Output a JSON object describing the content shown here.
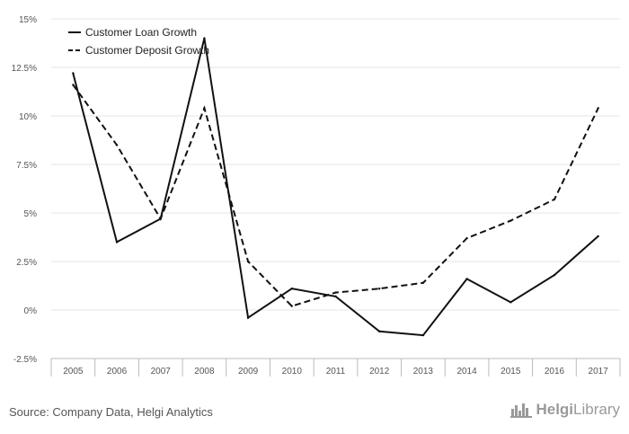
{
  "chart_data": {
    "type": "line",
    "x": [
      "2005",
      "2006",
      "2007",
      "2008",
      "2009",
      "2010",
      "2011",
      "2012",
      "2013",
      "2014",
      "2015",
      "2016",
      "2017"
    ],
    "series": [
      {
        "name": "Customer Loan Growth",
        "style": "solid",
        "values": [
          12.2,
          3.5,
          4.7,
          14.0,
          -0.4,
          1.1,
          0.7,
          -1.1,
          -1.3,
          1.6,
          0.4,
          1.8,
          3.8
        ]
      },
      {
        "name": "Customer Deposit Growth",
        "style": "dashed",
        "values": [
          11.6,
          8.5,
          4.7,
          10.4,
          2.5,
          0.2,
          0.9,
          1.1,
          1.4,
          3.7,
          4.6,
          5.7,
          10.4
        ]
      }
    ],
    "ylim": [
      -2.5,
      15
    ],
    "yticks": [
      -2.5,
      0,
      2.5,
      5,
      7.5,
      10,
      12.5,
      15
    ],
    "ytick_labels": [
      "-2.5%",
      "0%",
      "2.5%",
      "5%",
      "7.5%",
      "10%",
      "12.5%",
      "15%"
    ],
    "grid": true,
    "legend": "top-left"
  },
  "footer": {
    "source": "Source: Company Data, Helgi Analytics",
    "brand_prefix": "Helgi",
    "brand_suffix": "Library"
  },
  "colors": {
    "line": "#111111",
    "grid": "#e6e6e6",
    "axis": "#bbbbbb",
    "brand": "#9a9a9a"
  }
}
